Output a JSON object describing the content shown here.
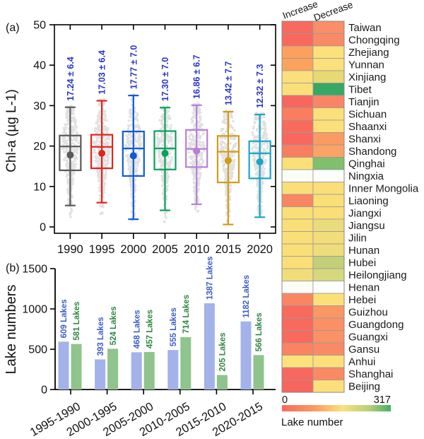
{
  "figure": {
    "panel_a_label": "(a)",
    "panel_b_label": "(b)",
    "background": "#ffffff"
  },
  "chart_data": [
    {
      "id": "chla-boxplot",
      "type": "box",
      "ylabel": "Chl-a (µg L-1)",
      "ylim": [
        0,
        50
      ],
      "yticks": [
        0,
        10,
        20,
        30,
        40,
        50
      ],
      "annotation_color": "#2b35c8",
      "scatter_color": "#c5c5c5",
      "frame": "box-with-ticks",
      "series": [
        {
          "year": "1990",
          "color": "#595959",
          "annotation": "17.24 ± 6.4",
          "low": 5.3,
          "q1": 14.0,
          "median": 19.9,
          "q3": 22.6,
          "high": 29.6,
          "mean": 17.8
        },
        {
          "year": "1995",
          "color": "#e2231a",
          "annotation": "17.03 ± 6.4",
          "low": 6.0,
          "q1": 14.5,
          "median": 19.8,
          "q3": 22.8,
          "high": 31.2,
          "mean": 18.2
        },
        {
          "year": "2000",
          "color": "#0d5cd6",
          "annotation": "17.77 ± 7.0",
          "low": 1.9,
          "q1": 12.6,
          "median": 19.4,
          "q3": 23.6,
          "high": 32.5,
          "mean": 17.6
        },
        {
          "year": "2005",
          "color": "#0aa05e",
          "annotation": "17.30 ± 7.0",
          "low": 4.1,
          "q1": 14.2,
          "median": 19.4,
          "q3": 23.7,
          "high": 29.5,
          "mean": 18.2
        },
        {
          "year": "2010",
          "color": "#b77fd8",
          "annotation": "16.86 ± 6.7",
          "low": 5.6,
          "q1": 14.8,
          "median": 19.3,
          "q3": 24.0,
          "high": 30.1,
          "mean": 18.8
        },
        {
          "year": "2015",
          "color": "#d19c17",
          "annotation": "13.42 ± 7.7",
          "low": 0.6,
          "q1": 11.0,
          "median": 18.6,
          "q3": 22.5,
          "high": 28.5,
          "mean": 16.4
        },
        {
          "year": "2020",
          "color": "#18a6c6",
          "annotation": "12.32 ± 7.3",
          "low": 2.4,
          "q1": 12.0,
          "median": 18.2,
          "q3": 21.2,
          "high": 27.8,
          "mean": 16.1
        }
      ]
    },
    {
      "id": "lake-numbers-bars",
      "type": "bar",
      "ylabel": "Lake numbers",
      "ylim": [
        0,
        1500
      ],
      "yticks": [
        0,
        500,
        1000,
        1500
      ],
      "categories": [
        "1995-1990",
        "2000-1995",
        "2005-2000",
        "2010-2005",
        "2015-2010",
        "2020-2015"
      ],
      "series": [
        {
          "name": "Increase",
          "color": "#a3b2e8",
          "label_color": "#3b5cc8",
          "values": [
            609,
            393,
            468,
            555,
            1387,
            1182
          ],
          "labels": [
            "609 Lakes",
            "393 Lakes",
            "468 Lakes",
            "555 Lakes",
            "1387 Lakes",
            "1182 Lakes"
          ],
          "drawn_values": [
            594,
            374,
            462,
            490,
            1070,
            845
          ]
        },
        {
          "name": "Decrease",
          "color": "#8fc48c",
          "label_color": "#2f8540",
          "values": [
            581,
            524,
            457,
            714,
            205,
            566
          ],
          "labels": [
            "581 Lakes",
            "524 Lakes",
            "457 Lakes",
            "714 Lakes",
            "205 Lakes",
            "566 Lakes"
          ],
          "drawn_values": [
            565,
            506,
            465,
            650,
            180,
            427
          ]
        }
      ]
    },
    {
      "id": "province-heatmap",
      "type": "heatmap",
      "columns": [
        "Increase",
        "Decrease"
      ],
      "rows": [
        {
          "province": "Taiwan",
          "increase_color": "#f8695e",
          "decrease_color": "#fa8e66"
        },
        {
          "province": "Chongqing",
          "increase_color": "#f8685e",
          "decrease_color": "#fa8a66"
        },
        {
          "province": "Zhejiang",
          "increase_color": "#fba05f",
          "decrease_color": "#fbe07b"
        },
        {
          "province": "Yunnan",
          "increase_color": "#fba25f",
          "decrease_color": "#fbe07b"
        },
        {
          "province": "Xinjiang",
          "increase_color": "#fbdf7a",
          "decrease_color": "#e7d974"
        },
        {
          "province": "Tibet",
          "increase_color": "#fbdf7a",
          "decrease_color": "#35a866"
        },
        {
          "province": "Tianjin",
          "increase_color": "#f8675d",
          "decrease_color": "#fa8566"
        },
        {
          "province": "Sichuan",
          "increase_color": "#fa7d5e",
          "decrease_color": "#fbdf7a"
        },
        {
          "province": "Shaanxi",
          "increase_color": "#f86b5c",
          "decrease_color": "#fbe07a"
        },
        {
          "province": "Shanxi",
          "increase_color": "#f8685e",
          "decrease_color": "#fb9b64"
        },
        {
          "province": "Shandong",
          "increase_color": "#f87d61",
          "decrease_color": "#fba366"
        },
        {
          "province": "Qinghai",
          "increase_color": "#fbdf77",
          "decrease_color": "#7fbf6e"
        },
        {
          "province": "Ningxia",
          "increase_color": "#fafcf6",
          "decrease_color": "#fcfefb"
        },
        {
          "province": "Inner Mongolia",
          "increase_color": "#fade77",
          "decrease_color": "#fade77"
        },
        {
          "province": "Liaoning",
          "increase_color": "#fa8562",
          "decrease_color": "#fade77"
        },
        {
          "province": "Jiangxi",
          "increase_color": "#fade77",
          "decrease_color": "#fade77"
        },
        {
          "province": "Jiangsu",
          "increase_color": "#fade77",
          "decrease_color": "#e9dc7d"
        },
        {
          "province": "Jilin",
          "increase_color": "#fade77",
          "decrease_color": "#f3dd7a"
        },
        {
          "province": "Hunan",
          "increase_color": "#fade77",
          "decrease_color": "#eedd7b"
        },
        {
          "province": "Hubei",
          "increase_color": "#fade77",
          "decrease_color": "#c3cf79"
        },
        {
          "province": "Heilongjiang",
          "increase_color": "#f0dd7a",
          "decrease_color": "#d6d87e"
        },
        {
          "province": "Henan",
          "increase_color": "#fafcf6",
          "decrease_color": "#fcfefb"
        },
        {
          "province": "Hebei",
          "increase_color": "#fa8562",
          "decrease_color": "#fbe07a"
        },
        {
          "province": "Guizhou",
          "increase_color": "#f86b5c",
          "decrease_color": "#fb9766"
        },
        {
          "province": "Guangdong",
          "increase_color": "#f8695e",
          "decrease_color": "#fa9066"
        },
        {
          "province": "Guangxi",
          "increase_color": "#f8695e",
          "decrease_color": "#fa9266"
        },
        {
          "province": "Gansu",
          "increase_color": "#fa8462",
          "decrease_color": "#fa8a66"
        },
        {
          "province": "Anhui",
          "increase_color": "#fbe27b",
          "decrease_color": "#fbdf7a"
        },
        {
          "province": "Shanghai",
          "increase_color": "#f8685e",
          "decrease_color": "#fa8966"
        },
        {
          "province": "Beijing",
          "increase_color": "#f8655e",
          "decrease_color": "#fbdf7a"
        }
      ],
      "colorbar": {
        "min": "0",
        "max": "317",
        "title": "Lake number",
        "gradient": [
          "#f86a5c",
          "#fa9a62",
          "#fbe07a",
          "#b8d078",
          "#44ad67"
        ]
      }
    }
  ]
}
